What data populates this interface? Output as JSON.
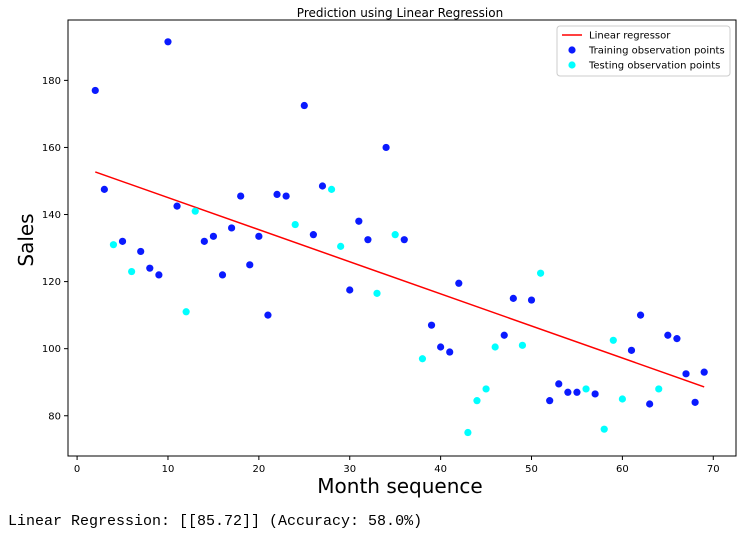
{
  "chart_data": {
    "type": "scatter",
    "title": "Prediction using Linear Regression",
    "xlabel": "Month sequence",
    "ylabel": "Sales",
    "xlim": [
      -1,
      72.5
    ],
    "ylim": [
      68,
      198
    ],
    "xticks": [
      0,
      10,
      20,
      30,
      40,
      50,
      60,
      70
    ],
    "yticks": [
      80,
      100,
      120,
      140,
      160,
      180
    ],
    "grid": false,
    "legend_position": "top-right",
    "series": [
      {
        "name": "Linear regressor",
        "kind": "line",
        "color": "#ff0000",
        "x": [
          2,
          69
        ],
        "y": [
          152.7,
          88.6
        ]
      },
      {
        "name": "Training observation points",
        "kind": "scatter",
        "color": "#0a1aff",
        "x": [
          2,
          3,
          5,
          7,
          8,
          9,
          10,
          11,
          14,
          15,
          16,
          17,
          18,
          19,
          20,
          21,
          22,
          23,
          25,
          26,
          27,
          30,
          31,
          32,
          34,
          36,
          39,
          40,
          41,
          42,
          47,
          48,
          50,
          52,
          53,
          54,
          55,
          57,
          61,
          62,
          63,
          65,
          66,
          67,
          68,
          69
        ],
        "y": [
          177,
          147.5,
          132,
          129,
          124,
          122,
          191.5,
          142.5,
          132,
          133.5,
          122,
          136,
          145.5,
          125,
          133.5,
          110,
          146,
          145.5,
          172.5,
          134,
          148.5,
          117.5,
          138,
          132.5,
          160,
          132.5,
          107,
          100.5,
          99,
          119.5,
          104,
          115,
          114.5,
          84.5,
          89.5,
          87,
          87,
          86.5,
          99.5,
          110,
          83.5,
          104,
          103,
          92.5,
          84,
          93
        ]
      },
      {
        "name": "Testing observation points",
        "kind": "scatter",
        "color": "#00ffff",
        "x": [
          4,
          6,
          12,
          13,
          24,
          28,
          29,
          33,
          35,
          38,
          43,
          44,
          45,
          46,
          49,
          51,
          56,
          58,
          59,
          60,
          64
        ],
        "y": [
          131,
          123,
          111,
          141,
          137,
          147.5,
          130.5,
          116.5,
          134,
          97,
          75,
          84.5,
          88,
          100.5,
          101,
          122.5,
          88,
          76,
          102.5,
          85,
          88
        ]
      }
    ]
  },
  "caption": "Linear Regression: [[85.72]] (Accuracy: 58.0%)"
}
